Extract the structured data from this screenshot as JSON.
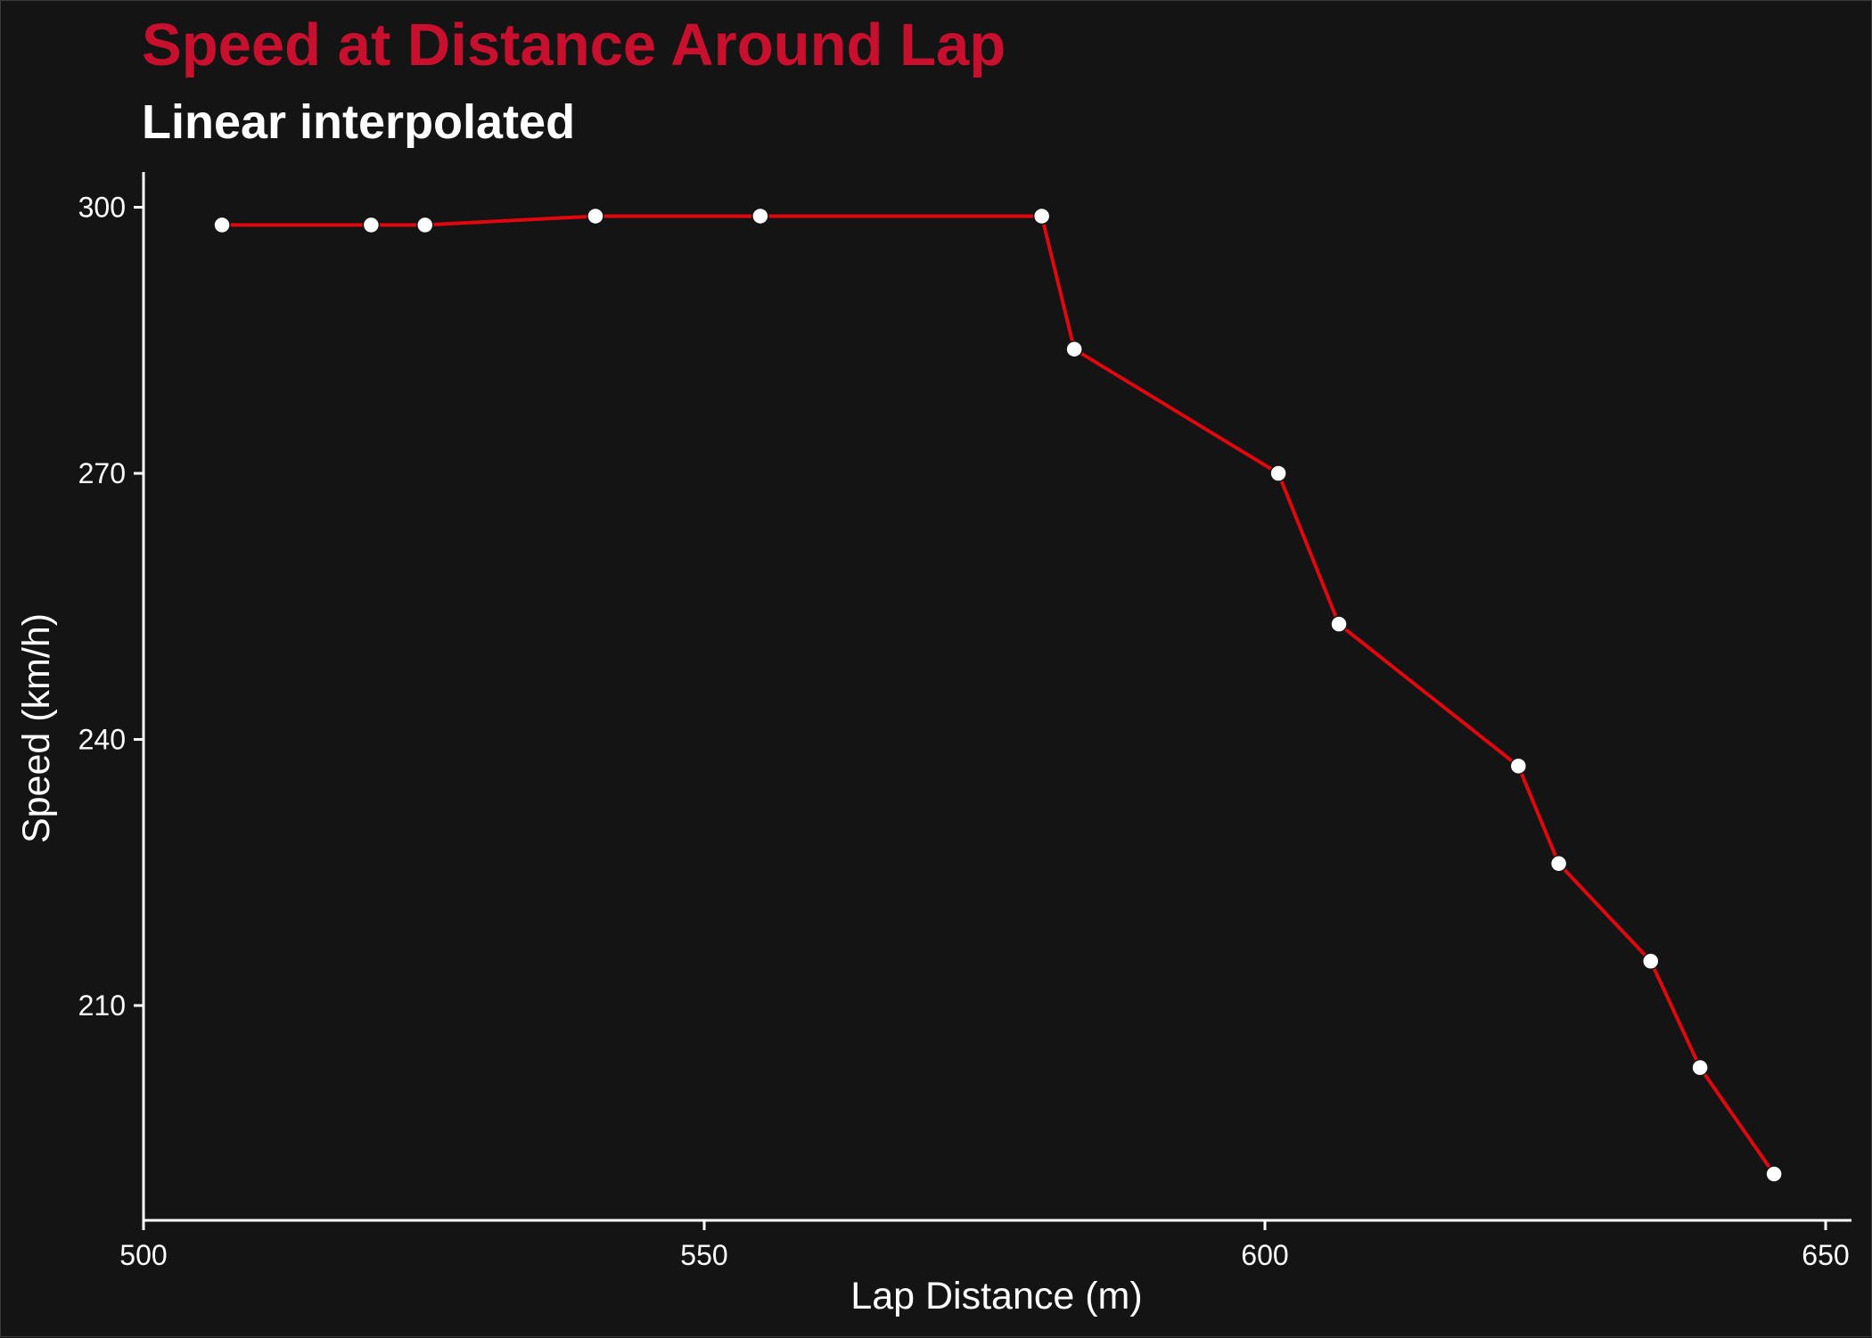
{
  "chart_data": {
    "type": "line",
    "title": "Speed at Distance Around Lap",
    "subtitle": "Linear interpolated",
    "xlabel": "Lap Distance (m)",
    "ylabel": "Speed (km/h)",
    "xlim": [
      500,
      650
    ],
    "ylim": [
      186,
      304
    ],
    "xticks": [
      500,
      550,
      600,
      650
    ],
    "yticks": [
      210,
      240,
      270,
      300
    ],
    "grid": false,
    "colors": {
      "line": "#e0070f",
      "point": "#ffffff",
      "title": "#c8102e",
      "background": "#141414"
    },
    "series": [
      {
        "x": [
          507,
          520.3,
          525.1,
          540.3,
          555,
          580.1,
          583,
          601.2,
          606.6,
          622.6,
          626.2,
          634.4,
          638.8,
          645.4
        ],
        "y": [
          298,
          298,
          298,
          299,
          299,
          299,
          284,
          270,
          253,
          237,
          226,
          215,
          203,
          191
        ]
      }
    ]
  }
}
